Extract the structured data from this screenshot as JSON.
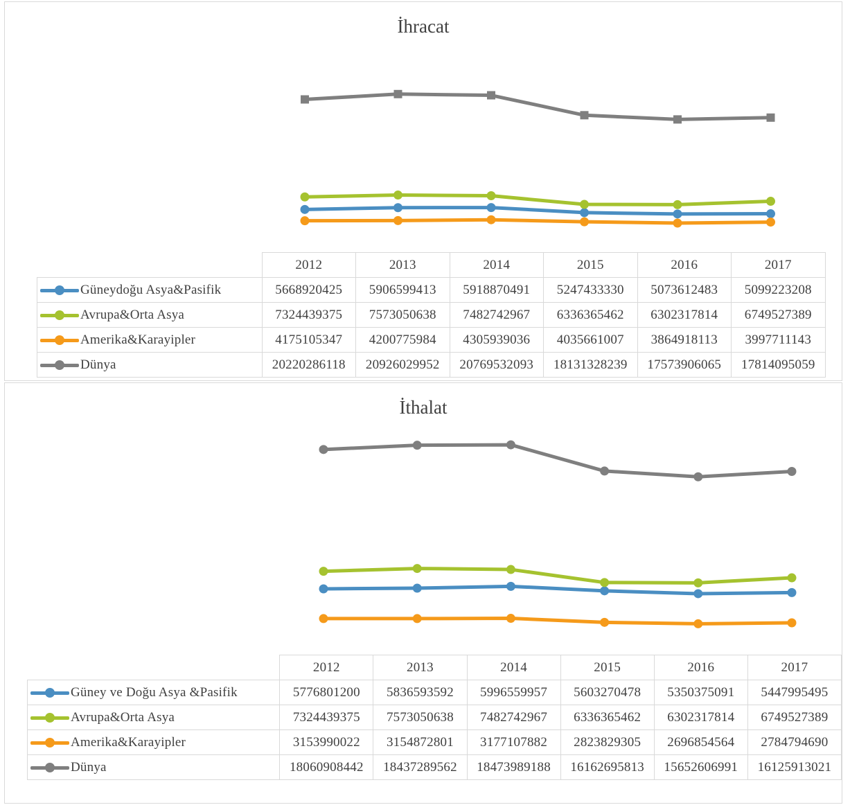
{
  "charts": [
    {
      "title": "İhracat",
      "chart_data": {
        "type": "line",
        "title": "İhracat",
        "categories": [
          "2012",
          "2013",
          "2014",
          "2015",
          "2016",
          "2017"
        ],
        "series": [
          {
            "name": "Güneydoğu Asya&Pasifik",
            "color": "#4a8ec2",
            "values": [
              5668920425,
              5906599413,
              5918870491,
              5247433330,
              5073612483,
              5099223208
            ],
            "labels": [
              "5668920425",
              "5906599413",
              "5918870491",
              "5247433330",
              "5073612483",
              "5099223208"
            ]
          },
          {
            "name": "Avrupa&Orta Asya",
            "color": "#a5c22f",
            "values": [
              7324439375,
              7573050638,
              7482742967,
              6336365462,
              6302317814,
              6749527389
            ],
            "labels": [
              "7324439375",
              "7573050638",
              "7482742967",
              "6336365462",
              "6302317814",
              "6749527389"
            ]
          },
          {
            "name": "Amerika&Karayipler",
            "color": "#f59a1a",
            "values": [
              4175105347,
              4200775984,
              4305939036,
              4035661007,
              3864918113,
              3997711143
            ],
            "labels": [
              "4175105347",
              "4200775984",
              "4305939036",
              "4035661007",
              "3864918113",
              "3997711143"
            ]
          },
          {
            "name": "Dünya",
            "color": "#7f7f7f",
            "values": [
              20220286118,
              20926029952,
              20769532093,
              18131328239,
              17573906065,
              17814095059
            ],
            "labels": [
              "20220286118",
              "20926029952",
              "20769532093",
              "18131328239",
              "17573906065",
              "17814095059"
            ]
          }
        ],
        "legend": "data table",
        "grid": false
      }
    },
    {
      "title": "İthalat",
      "chart_data": {
        "type": "line",
        "title": "İthalat",
        "categories": [
          "2012",
          "2013",
          "2014",
          "2015",
          "2016",
          "2017"
        ],
        "series": [
          {
            "name": "Güney ve Doğu Asya &Pasifik",
            "color": "#4a8ec2",
            "values": [
              5776801200,
              5836593592,
              5996559957,
              5603270478,
              5350375091,
              5447995495
            ],
            "labels": [
              "5776801200",
              "5836593592",
              "5996559957",
              "5603270478",
              "5350375091",
              "5447995495"
            ]
          },
          {
            "name": "Avrupa&Orta Asya",
            "color": "#a5c22f",
            "values": [
              7324439375,
              7573050638,
              7482742967,
              6336365462,
              6302317814,
              6749527389
            ],
            "labels": [
              "7324439375",
              "7573050638",
              "7482742967",
              "6336365462",
              "6302317814",
              "6749527389"
            ]
          },
          {
            "name": "Amerika&Karayipler",
            "color": "#f59a1a",
            "values": [
              3153990022,
              3154872801,
              3177107882,
              2823829305,
              2696854564,
              2784794690
            ],
            "labels": [
              "3153990022",
              "3154872801",
              "3177107882",
              "2823829305",
              "2696854564",
              "2784794690"
            ]
          },
          {
            "name": "Dünya",
            "color": "#7f7f7f",
            "values": [
              18060908442,
              18437289562,
              18473989188,
              16162695813,
              15652606991,
              16125913021
            ],
            "labels": [
              "18060908442",
              "18437289562",
              "18473989188",
              "16162695813",
              "15652606991",
              "16125913021"
            ]
          }
        ],
        "legend": "data table",
        "grid": false
      }
    }
  ]
}
